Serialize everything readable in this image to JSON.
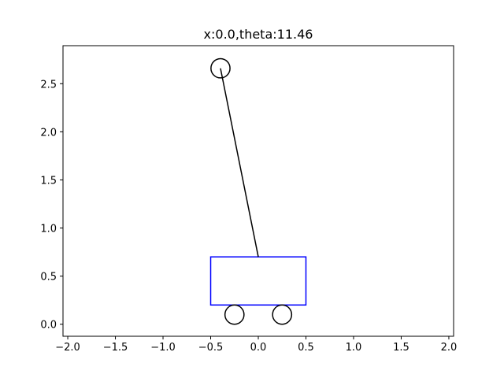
{
  "chart_data": {
    "type": "scatter",
    "title": "x:0.0,theta:11.46",
    "xlim": [
      -2.05,
      2.05
    ],
    "ylim": [
      -0.125,
      2.895
    ],
    "x_ticks": [
      {
        "value": -2.0,
        "label": "−2.0"
      },
      {
        "value": -1.5,
        "label": "−1.5"
      },
      {
        "value": -1.0,
        "label": "−1.0"
      },
      {
        "value": -0.5,
        "label": "−0.5"
      },
      {
        "value": 0.0,
        "label": "0.0"
      },
      {
        "value": 0.5,
        "label": "0.5"
      },
      {
        "value": 1.0,
        "label": "1.0"
      },
      {
        "value": 1.5,
        "label": "1.5"
      },
      {
        "value": 2.0,
        "label": "2.0"
      }
    ],
    "y_ticks": [
      {
        "value": 0.0,
        "label": "0.0"
      },
      {
        "value": 0.5,
        "label": "0.5"
      },
      {
        "value": 1.0,
        "label": "1.0"
      },
      {
        "value": 1.5,
        "label": "1.5"
      },
      {
        "value": 2.0,
        "label": "2.0"
      },
      {
        "value": 2.5,
        "label": "2.5"
      }
    ],
    "grid": false,
    "cart": {
      "x_min": -0.5,
      "x_max": 0.5,
      "y_min": 0.2,
      "y_max": 0.7,
      "color": "#0000ff"
    },
    "wheels": [
      {
        "x": -0.25,
        "y": 0.1,
        "radius": 0.1
      },
      {
        "x": 0.25,
        "y": 0.1,
        "radius": 0.1
      }
    ],
    "pole": {
      "x0": 0.0,
      "y0": 0.7,
      "x1": -0.397,
      "y1": 2.66,
      "color": "#000000"
    },
    "bob": {
      "x": -0.397,
      "y": 2.66,
      "radius": 0.1
    }
  }
}
